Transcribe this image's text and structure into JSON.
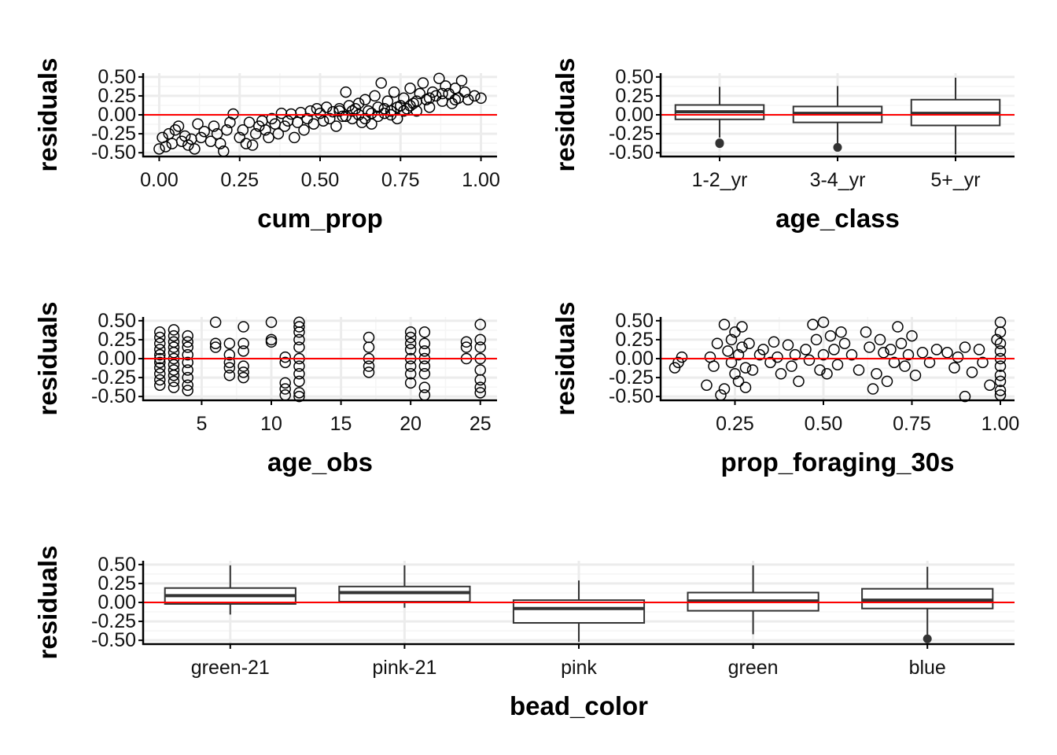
{
  "chart_data": [
    {
      "id": "cum_prop",
      "type": "scatter",
      "xlabel": "cum_prop",
      "ylabel": "residuals",
      "xlim": [
        -0.05,
        1.05
      ],
      "ylim": [
        -0.55,
        0.55
      ],
      "x_ticks": [
        0,
        0.25,
        0.5,
        0.75,
        1
      ],
      "x_tick_labels": [
        "0.00",
        "0.25",
        "0.50",
        "0.75",
        "1.00"
      ],
      "y_ticks": [
        -0.5,
        -0.25,
        0,
        0.25,
        0.5
      ],
      "y_tick_labels": [
        "-0.50",
        "-0.25",
        "0.00",
        "0.25",
        "0.50"
      ],
      "hline": 0,
      "points": [
        [
          0.0,
          -0.45
        ],
        [
          0.01,
          -0.3
        ],
        [
          0.02,
          -0.42
        ],
        [
          0.03,
          -0.25
        ],
        [
          0.04,
          -0.38
        ],
        [
          0.05,
          -0.2
        ],
        [
          0.06,
          -0.15
        ],
        [
          0.07,
          -0.35
        ],
        [
          0.08,
          -0.28
        ],
        [
          0.09,
          -0.4
        ],
        [
          0.1,
          -0.32
        ],
        [
          0.11,
          -0.45
        ],
        [
          0.12,
          -0.12
        ],
        [
          0.13,
          -0.3
        ],
        [
          0.14,
          -0.22
        ],
        [
          0.16,
          -0.35
        ],
        [
          0.17,
          -0.15
        ],
        [
          0.18,
          -0.25
        ],
        [
          0.19,
          -0.38
        ],
        [
          0.2,
          -0.48
        ],
        [
          0.21,
          -0.2
        ],
        [
          0.22,
          -0.1
        ],
        [
          0.23,
          0.01
        ],
        [
          0.25,
          -0.3
        ],
        [
          0.26,
          -0.2
        ],
        [
          0.27,
          -0.38
        ],
        [
          0.28,
          -0.1
        ],
        [
          0.29,
          -0.4
        ],
        [
          0.3,
          -0.25
        ],
        [
          0.31,
          -0.15
        ],
        [
          0.32,
          -0.08
        ],
        [
          0.33,
          -0.2
        ],
        [
          0.34,
          -0.3
        ],
        [
          0.35,
          -0.05
        ],
        [
          0.36,
          -0.12
        ],
        [
          0.37,
          -0.25
        ],
        [
          0.38,
          0.02
        ],
        [
          0.39,
          -0.15
        ],
        [
          0.4,
          -0.08
        ],
        [
          0.41,
          0.01
        ],
        [
          0.42,
          -0.3
        ],
        [
          0.43,
          -0.1
        ],
        [
          0.44,
          0.03
        ],
        [
          0.45,
          -0.2
        ],
        [
          0.46,
          -0.05
        ],
        [
          0.47,
          0.05
        ],
        [
          0.48,
          -0.12
        ],
        [
          0.49,
          0.08
        ],
        [
          0.5,
          0.02
        ],
        [
          0.51,
          -0.08
        ],
        [
          0.52,
          0.1
        ],
        [
          0.53,
          -0.05
        ],
        [
          0.54,
          0.04
        ],
        [
          0.55,
          -0.15
        ],
        [
          0.56,
          0.05
        ],
        [
          0.57,
          -0.02
        ],
        [
          0.58,
          0.3
        ],
        [
          0.59,
          0.12
        ],
        [
          0.6,
          -0.05
        ],
        [
          0.61,
          0.08
        ],
        [
          0.62,
          0.15
        ],
        [
          0.63,
          -0.1
        ],
        [
          0.64,
          0.2
        ],
        [
          0.65,
          0.05
        ],
        [
          0.66,
          -0.12
        ],
        [
          0.67,
          0.25
        ],
        [
          0.68,
          0.1
        ],
        [
          0.69,
          0.42
        ],
        [
          0.7,
          0.02
        ],
        [
          0.71,
          0.18
        ],
        [
          0.72,
          0.05
        ],
        [
          0.73,
          0.3
        ],
        [
          0.74,
          -0.05
        ],
        [
          0.75,
          0.12
        ],
        [
          0.76,
          0.22
        ],
        [
          0.77,
          0.08
        ],
        [
          0.78,
          0.35
        ],
        [
          0.79,
          0.15
        ],
        [
          0.8,
          0.05
        ],
        [
          0.81,
          0.28
        ],
        [
          0.82,
          0.42
        ],
        [
          0.83,
          0.2
        ],
        [
          0.84,
          0.1
        ],
        [
          0.85,
          0.3
        ],
        [
          0.86,
          0.25
        ],
        [
          0.87,
          0.48
        ],
        [
          0.88,
          0.18
        ],
        [
          0.89,
          0.38
        ],
        [
          0.9,
          0.28
        ],
        [
          0.91,
          0.15
        ],
        [
          0.92,
          0.35
        ],
        [
          0.93,
          0.22
        ],
        [
          0.94,
          0.45
        ],
        [
          0.95,
          0.3
        ],
        [
          0.96,
          0.2
        ],
        [
          0.98,
          0.25
        ],
        [
          1.0,
          0.22
        ],
        [
          0.62,
          0.0
        ],
        [
          0.66,
          0.02
        ],
        [
          0.7,
          0.08
        ],
        [
          0.74,
          0.1
        ],
        [
          0.78,
          0.12
        ],
        [
          0.64,
          -0.05
        ],
        [
          0.68,
          -0.02
        ],
        [
          0.72,
          0.0
        ],
        [
          0.76,
          0.05
        ],
        [
          0.8,
          0.18
        ],
        [
          0.84,
          0.22
        ],
        [
          0.88,
          0.28
        ],
        [
          0.92,
          0.2
        ],
        [
          0.6,
          0.05
        ],
        [
          0.58,
          -0.02
        ],
        [
          0.56,
          0.08
        ]
      ]
    },
    {
      "id": "age_class",
      "type": "box",
      "xlabel": "age_class",
      "ylabel": "residuals",
      "ylim": [
        -0.55,
        0.55
      ],
      "y_ticks": [
        -0.5,
        -0.25,
        0,
        0.25,
        0.5
      ],
      "y_tick_labels": [
        "-0.50",
        "-0.25",
        "0.00",
        "0.25",
        "0.50"
      ],
      "hline": 0,
      "categories": [
        "1-2_yr",
        "3-4_yr",
        "5+_yr"
      ],
      "boxes": [
        {
          "lower": -0.3,
          "q1": -0.06,
          "median": 0.04,
          "q3": 0.13,
          "upper": 0.37,
          "outliers": [
            -0.38,
            -0.37
          ]
        },
        {
          "lower": -0.4,
          "q1": -0.1,
          "median": 0.02,
          "q3": 0.11,
          "upper": 0.38,
          "outliers": [
            -0.43
          ]
        },
        {
          "lower": -0.52,
          "q1": -0.14,
          "median": 0.02,
          "q3": 0.2,
          "upper": 0.49,
          "outliers": []
        }
      ]
    },
    {
      "id": "age_obs",
      "type": "scatter",
      "xlabel": "age_obs",
      "ylabel": "residuals",
      "xlim": [
        0.8,
        26.2
      ],
      "ylim": [
        -0.55,
        0.55
      ],
      "x_ticks": [
        5,
        10,
        15,
        20,
        25
      ],
      "x_tick_labels": [
        "5",
        "10",
        "15",
        "20",
        "25"
      ],
      "y_ticks": [
        -0.5,
        -0.25,
        0,
        0.25,
        0.5
      ],
      "y_tick_labels": [
        "-0.50",
        "-0.25",
        "0.00",
        "0.25",
        "0.50"
      ],
      "hline": 0,
      "points": [
        [
          2,
          0.35
        ],
        [
          2,
          0.28
        ],
        [
          2,
          0.2
        ],
        [
          2,
          0.12
        ],
        [
          2,
          0.05
        ],
        [
          2,
          0.0
        ],
        [
          2,
          -0.05
        ],
        [
          2,
          -0.12
        ],
        [
          2,
          -0.2
        ],
        [
          2,
          -0.28
        ],
        [
          2,
          -0.35
        ],
        [
          3,
          0.38
        ],
        [
          3,
          0.3
        ],
        [
          3,
          0.22
        ],
        [
          3,
          0.15
        ],
        [
          3,
          0.08
        ],
        [
          3,
          0.0
        ],
        [
          3,
          -0.08
        ],
        [
          3,
          -0.15
        ],
        [
          3,
          -0.22
        ],
        [
          3,
          -0.3
        ],
        [
          3,
          -0.38
        ],
        [
          4,
          0.3
        ],
        [
          4,
          0.22
        ],
        [
          4,
          0.15
        ],
        [
          4,
          0.05
        ],
        [
          4,
          -0.05
        ],
        [
          4,
          -0.15
        ],
        [
          4,
          -0.25
        ],
        [
          4,
          -0.35
        ],
        [
          4,
          -0.42
        ],
        [
          6,
          0.48
        ],
        [
          6,
          0.2
        ],
        [
          6,
          0.15
        ],
        [
          7,
          0.2
        ],
        [
          7,
          0.05
        ],
        [
          7,
          -0.05
        ],
        [
          7,
          -0.12
        ],
        [
          7,
          -0.22
        ],
        [
          8,
          0.42
        ],
        [
          8,
          0.2
        ],
        [
          8,
          0.1
        ],
        [
          8,
          -0.1
        ],
        [
          8,
          -0.18
        ],
        [
          8,
          -0.25
        ],
        [
          10,
          0.48
        ],
        [
          10,
          0.25
        ],
        [
          10,
          0.22
        ],
        [
          11,
          0.02
        ],
        [
          11,
          -0.05
        ],
        [
          11,
          -0.32
        ],
        [
          11,
          -0.4
        ],
        [
          11,
          -0.48
        ],
        [
          12,
          0.48
        ],
        [
          12,
          0.42
        ],
        [
          12,
          0.35
        ],
        [
          12,
          0.25
        ],
        [
          12,
          0.15
        ],
        [
          12,
          0.0
        ],
        [
          12,
          -0.1
        ],
        [
          12,
          -0.2
        ],
        [
          12,
          -0.3
        ],
        [
          12,
          -0.45
        ],
        [
          12,
          -0.5
        ],
        [
          17,
          0.28
        ],
        [
          17,
          0.15
        ],
        [
          17,
          0.0
        ],
        [
          17,
          -0.1
        ],
        [
          17,
          -0.18
        ],
        [
          20,
          0.35
        ],
        [
          20,
          0.28
        ],
        [
          20,
          0.2
        ],
        [
          20,
          0.12
        ],
        [
          20,
          0.0
        ],
        [
          20,
          -0.1
        ],
        [
          20,
          -0.2
        ],
        [
          20,
          -0.32
        ],
        [
          21,
          0.35
        ],
        [
          21,
          0.2
        ],
        [
          21,
          0.1
        ],
        [
          21,
          0.0
        ],
        [
          21,
          -0.1
        ],
        [
          21,
          -0.2
        ],
        [
          21,
          -0.38
        ],
        [
          21,
          -0.48
        ],
        [
          24,
          0.22
        ],
        [
          24,
          0.15
        ],
        [
          24,
          0.0
        ],
        [
          25,
          0.45
        ],
        [
          25,
          0.25
        ],
        [
          25,
          0.15
        ],
        [
          25,
          0.0
        ],
        [
          25,
          -0.15
        ],
        [
          25,
          -0.28
        ],
        [
          25,
          -0.38
        ],
        [
          25,
          -0.45
        ]
      ]
    },
    {
      "id": "prop_foraging_30s",
      "type": "scatter",
      "xlabel": "prop_foraging_30s",
      "ylabel": "residuals",
      "xlim": [
        0.04,
        1.04
      ],
      "ylim": [
        -0.55,
        0.55
      ],
      "x_ticks": [
        0.25,
        0.5,
        0.75,
        1
      ],
      "x_tick_labels": [
        "0.25",
        "0.50",
        "0.75",
        "1.00"
      ],
      "y_ticks": [
        -0.5,
        -0.25,
        0,
        0.25,
        0.5
      ],
      "y_tick_labels": [
        "-0.50",
        "-0.25",
        "0.00",
        "0.25",
        "0.50"
      ],
      "hline": 0,
      "points": [
        [
          0.08,
          -0.12
        ],
        [
          0.09,
          -0.05
        ],
        [
          0.1,
          0.02
        ],
        [
          0.17,
          -0.35
        ],
        [
          0.18,
          0.02
        ],
        [
          0.19,
          -0.1
        ],
        [
          0.2,
          0.2
        ],
        [
          0.21,
          -0.48
        ],
        [
          0.22,
          -0.4
        ],
        [
          0.22,
          0.45
        ],
        [
          0.23,
          0.1
        ],
        [
          0.24,
          -0.05
        ],
        [
          0.24,
          0.25
        ],
        [
          0.25,
          -0.2
        ],
        [
          0.25,
          0.35
        ],
        [
          0.26,
          0.05
        ],
        [
          0.26,
          -0.3
        ],
        [
          0.27,
          0.15
        ],
        [
          0.27,
          0.42
        ],
        [
          0.28,
          -0.12
        ],
        [
          0.28,
          -0.38
        ],
        [
          0.29,
          0.2
        ],
        [
          0.3,
          -0.15
        ],
        [
          0.32,
          0.05
        ],
        [
          0.33,
          0.12
        ],
        [
          0.35,
          -0.05
        ],
        [
          0.36,
          0.22
        ],
        [
          0.37,
          0.02
        ],
        [
          0.38,
          -0.2
        ],
        [
          0.4,
          0.18
        ],
        [
          0.41,
          -0.1
        ],
        [
          0.42,
          0.05
        ],
        [
          0.43,
          -0.3
        ],
        [
          0.45,
          0.12
        ],
        [
          0.46,
          -0.02
        ],
        [
          0.47,
          0.45
        ],
        [
          0.48,
          0.25
        ],
        [
          0.49,
          -0.15
        ],
        [
          0.5,
          0.48
        ],
        [
          0.5,
          0.05
        ],
        [
          0.51,
          -0.2
        ],
        [
          0.52,
          0.3
        ],
        [
          0.53,
          0.12
        ],
        [
          0.54,
          -0.08
        ],
        [
          0.55,
          0.35
        ],
        [
          0.56,
          0.2
        ],
        [
          0.58,
          0.05
        ],
        [
          0.6,
          -0.15
        ],
        [
          0.62,
          0.35
        ],
        [
          0.63,
          0.15
        ],
        [
          0.64,
          -0.4
        ],
        [
          0.65,
          -0.2
        ],
        [
          0.66,
          0.25
        ],
        [
          0.67,
          0.08
        ],
        [
          0.68,
          -0.3
        ],
        [
          0.69,
          0.12
        ],
        [
          0.7,
          -0.05
        ],
        [
          0.71,
          0.42
        ],
        [
          0.72,
          0.2
        ],
        [
          0.73,
          -0.1
        ],
        [
          0.74,
          0.05
        ],
        [
          0.75,
          0.3
        ],
        [
          0.76,
          -0.22
        ],
        [
          0.78,
          0.08
        ],
        [
          0.8,
          -0.05
        ],
        [
          0.82,
          0.12
        ],
        [
          0.85,
          0.08
        ],
        [
          0.87,
          -0.12
        ],
        [
          0.88,
          0.02
        ],
        [
          0.9,
          0.15
        ],
        [
          0.9,
          -0.5
        ],
        [
          0.92,
          -0.18
        ],
        [
          0.94,
          0.12
        ],
        [
          0.95,
          -0.05
        ],
        [
          0.97,
          -0.35
        ],
        [
          0.99,
          0.25
        ],
        [
          1.0,
          0.48
        ],
        [
          1.0,
          0.35
        ],
        [
          1.0,
          0.2
        ],
        [
          1.0,
          0.1
        ],
        [
          1.0,
          0.0
        ],
        [
          1.0,
          -0.1
        ],
        [
          1.0,
          -0.22
        ],
        [
          1.0,
          -0.3
        ],
        [
          1.0,
          -0.42
        ],
        [
          1.0,
          -0.48
        ]
      ]
    },
    {
      "id": "bead_color",
      "type": "box",
      "xlabel": "bead_color",
      "ylabel": "residuals",
      "ylim": [
        -0.55,
        0.55
      ],
      "y_ticks": [
        -0.5,
        -0.25,
        0,
        0.25,
        0.5
      ],
      "y_tick_labels": [
        "-0.50",
        "-0.25",
        "0.00",
        "0.25",
        "0.50"
      ],
      "hline": 0,
      "categories": [
        "green-21",
        "pink-21",
        "pink",
        "green",
        "blue"
      ],
      "boxes": [
        {
          "lower": -0.16,
          "q1": -0.02,
          "median": 0.09,
          "q3": 0.19,
          "upper": 0.49,
          "outliers": []
        },
        {
          "lower": -0.07,
          "q1": 0.01,
          "median": 0.13,
          "q3": 0.21,
          "upper": 0.49,
          "outliers": []
        },
        {
          "lower": -0.52,
          "q1": -0.27,
          "median": -0.08,
          "q3": 0.03,
          "upper": 0.29,
          "outliers": []
        },
        {
          "lower": -0.42,
          "q1": -0.11,
          "median": 0.02,
          "q3": 0.13,
          "upper": 0.49,
          "outliers": []
        },
        {
          "lower": -0.44,
          "q1": -0.08,
          "median": 0.03,
          "q3": 0.18,
          "upper": 0.47,
          "outliers": [
            -0.48
          ]
        }
      ]
    }
  ]
}
